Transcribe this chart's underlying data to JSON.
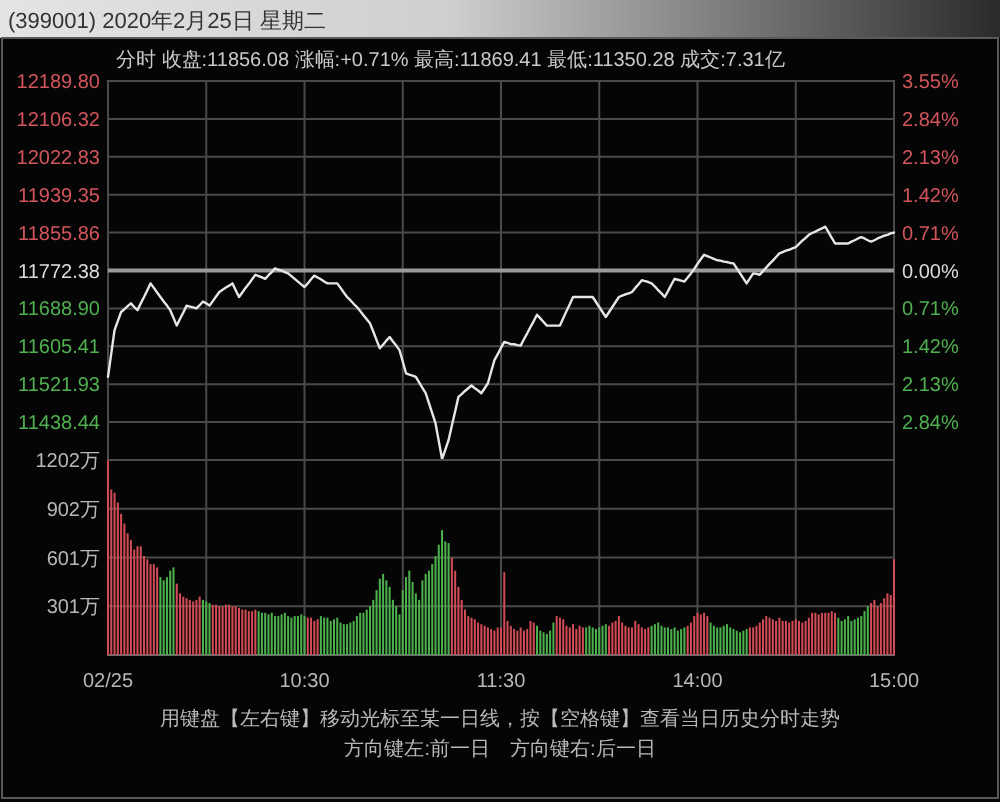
{
  "chart_data": [
    {
      "type": "line",
      "title": "(399001) 2020年2月25日 星期二",
      "subtitle": "分时  收盘:11856.08  涨幅:+0.71%  最高:11869.41  最低:11350.28  成交:7.31亿",
      "categories": [
        null,
        null,
        null,
        null,
        null,
        null,
        null,
        null,
        null,
        null,
        null,
        null,
        null,
        null,
        null,
        null,
        null,
        null,
        null,
        null,
        null,
        null,
        null,
        null,
        null,
        null,
        null,
        null,
        null,
        null,
        null,
        null,
        null,
        null,
        null,
        null,
        null,
        null,
        null,
        null,
        null,
        null,
        null,
        null,
        null,
        null,
        null,
        null,
        null,
        null,
        null,
        null,
        null,
        null,
        null,
        null,
        null,
        null,
        null,
        null,
        null,
        null,
        null,
        null,
        null,
        null,
        null,
        null,
        null,
        null,
        null,
        null,
        null,
        null,
        null,
        null,
        null,
        null,
        null,
        null,
        null,
        null,
        null,
        null,
        null,
        null,
        null,
        null,
        null,
        null,
        null,
        null,
        null,
        null,
        null,
        null,
        null,
        null,
        null,
        null,
        null,
        null,
        null,
        null,
        null,
        null,
        null,
        null,
        null,
        null,
        null,
        null,
        null,
        null,
        null,
        null,
        null,
        null,
        null,
        null,
        null,
        null,
        null,
        null,
        null,
        null,
        null,
        null,
        null,
        null,
        null,
        null,
        null,
        null,
        null,
        null,
        null,
        null,
        null,
        null,
        null,
        null,
        null,
        null,
        null,
        null,
        null,
        null,
        null,
        null,
        null,
        null,
        null,
        null,
        null,
        null,
        null,
        null,
        null,
        null,
        null,
        null,
        null,
        null,
        null,
        null,
        null,
        null,
        null,
        null,
        null,
        null,
        null,
        null,
        null,
        null,
        null,
        null,
        null,
        null,
        null,
        null,
        null,
        null,
        null,
        null,
        null,
        null,
        null,
        null,
        null,
        null,
        null,
        null,
        null,
        null,
        null,
        null,
        null,
        null,
        null,
        null,
        null,
        null,
        null,
        null,
        null,
        null,
        null,
        null,
        null,
        null,
        null,
        null,
        null,
        null,
        null,
        null,
        null,
        null,
        null,
        null,
        null,
        null,
        null,
        null,
        null,
        null,
        null,
        null,
        null,
        null,
        null,
        null,
        null,
        null,
        null,
        null,
        null,
        null,
        null
      ],
      "series": [
        {
          "color": "#e6e6e6",
          "values": [
            11538,
            11590,
            11641,
            11661,
            11681,
            11687,
            11694,
            11700,
            11692,
            11685,
            11700,
            11714,
            11729,
            11744,
            11734,
            11724,
            11714,
            11704,
            11695,
            11685,
            11668,
            11651,
            11666,
            11680,
            11695,
            11693,
            11691,
            11689,
            11696,
            11704,
            11700,
            11695,
            11705,
            11715,
            11725,
            11730,
            11735,
            11739,
            11744,
            11729,
            11714,
            11724,
            11734,
            11743,
            11753,
            11763,
            11760,
            11757,
            11754,
            11762,
            11769,
            11777,
            11774,
            11772,
            11769,
            11766,
            11760,
            11754,
            11748,
            11742,
            11736,
            11744,
            11753,
            11761,
            11757,
            11753,
            11748,
            11744,
            11744,
            11744,
            11744,
            11734,
            11724,
            11714,
            11707,
            11699,
            11692,
            11683,
            11674,
            11665,
            11656,
            11638,
            11619,
            11601,
            11609,
            11618,
            11626,
            11616,
            11607,
            11597,
            11572,
            11546,
            11543,
            11541,
            11538,
            11526,
            11514,
            11502,
            11480,
            11458,
            11436,
            11397,
            11357,
            11378,
            11399,
            11431,
            11462,
            11494,
            11500,
            11507,
            11513,
            11519,
            11513,
            11508,
            11502,
            11513,
            11524,
            11550,
            11575,
            11588,
            11602,
            11615,
            11613,
            11610,
            11610,
            11608,
            11607,
            11621,
            11634,
            11648,
            11661,
            11675,
            11667,
            11659,
            11651,
            11651,
            11651,
            11651,
            11651,
            11667,
            11683,
            11698,
            11714,
            11714,
            11714,
            11714,
            11714,
            11714,
            11714,
            11703,
            11692,
            11681,
            11670,
            11681,
            11692,
            11703,
            11714,
            11717,
            11720,
            11722,
            11725,
            11734,
            11742,
            11751,
            11749,
            11747,
            11744,
            11737,
            11729,
            11722,
            11714,
            11727,
            11741,
            11754,
            11752,
            11750,
            11748,
            11757,
            11766,
            11776,
            11787,
            11797,
            11807,
            11804,
            11801,
            11798,
            11795,
            11794,
            11792,
            11791,
            11789,
            11788,
            11777,
            11766,
            11755,
            11744,
            11755,
            11766,
            11765,
            11763,
            11771,
            11779,
            11787,
            11794,
            11802,
            11810,
            11813,
            11816,
            11818,
            11821,
            11824,
            11831,
            11838,
            11844,
            11851,
            11855,
            11858,
            11862,
            11865,
            11869,
            11857,
            11844,
            11832,
            11832,
            11832,
            11832,
            11832,
            11836,
            11839,
            11843,
            11846,
            11843,
            11839,
            11836,
            11839,
            11843,
            11846,
            11849,
            11851,
            11854,
            11856
          ]
        }
      ],
      "tick_labels": "y",
      "ylim": [
        11354.96,
        12189.8
      ],
      "yticks": [
        {
          "value": 12189.8,
          "label": "12189.80"
        },
        {
          "value": 12106.32,
          "label": "12106.32"
        },
        {
          "value": 12022.83,
          "label": "12022.83"
        },
        {
          "value": 11939.35,
          "label": "11939.35"
        },
        {
          "value": 11855.86,
          "label": "11855.86"
        },
        {
          "value": 11772.38,
          "label": "11772.38"
        },
        {
          "value": 11688.9,
          "label": "11688.90"
        },
        {
          "value": 11605.41,
          "label": "11605.41"
        },
        {
          "value": 11521.93,
          "label": "11521.93"
        },
        {
          "value": 11438.44,
          "label": "11438.44"
        }
      ],
      "y2lim": [
        -3.55,
        3.55
      ],
      "y2ticks": [
        {
          "value": 3.55,
          "label": "3.55%"
        },
        {
          "value": 2.84,
          "label": "2.84%"
        },
        {
          "value": 2.13,
          "label": "2.13%"
        },
        {
          "value": 1.42,
          "label": "1.42%"
        },
        {
          "value": 0.71,
          "label": "0.71%"
        },
        {
          "value": 0,
          "label": "0.00%"
        },
        {
          "value": -0.71,
          "label": "0.71%"
        },
        {
          "value": -1.42,
          "label": "1.42%"
        },
        {
          "value": -2.13,
          "label": "2.13%"
        },
        {
          "value": -2.84,
          "label": "2.84%"
        }
      ],
      "ref_lines": [
        {
          "axis": "y",
          "value": 11772.38,
          "color": "#9a9a9a"
        }
      ],
      "grid": true
    },
    {
      "type": "bar",
      "annotations": [
        "用键盘【左右键】移动光标至某一日线，按【空格键】查看当日历史分时走势",
        "方向键左:前一日　方向键右:后一日"
      ],
      "categories": [
        "02/25",
        null,
        null,
        null,
        null,
        null,
        null,
        null,
        null,
        null,
        null,
        null,
        null,
        null,
        null,
        null,
        null,
        null,
        null,
        null,
        null,
        null,
        null,
        null,
        null,
        null,
        null,
        null,
        null,
        null,
        null,
        null,
        null,
        null,
        null,
        null,
        null,
        null,
        null,
        null,
        null,
        null,
        null,
        null,
        null,
        null,
        null,
        null,
        null,
        null,
        null,
        null,
        null,
        null,
        null,
        null,
        null,
        null,
        null,
        null,
        "10:30",
        null,
        null,
        null,
        null,
        null,
        null,
        null,
        null,
        null,
        null,
        null,
        null,
        null,
        null,
        null,
        null,
        null,
        null,
        null,
        null,
        null,
        null,
        null,
        null,
        null,
        null,
        null,
        null,
        null,
        null,
        null,
        null,
        null,
        null,
        null,
        null,
        null,
        null,
        null,
        null,
        null,
        null,
        null,
        null,
        null,
        null,
        null,
        null,
        null,
        null,
        null,
        null,
        null,
        null,
        null,
        null,
        null,
        null,
        null,
        "11:30",
        null,
        null,
        null,
        null,
        null,
        null,
        null,
        null,
        null,
        null,
        null,
        null,
        null,
        null,
        null,
        null,
        null,
        null,
        null,
        null,
        null,
        null,
        null,
        null,
        null,
        null,
        null,
        null,
        null,
        null,
        null,
        null,
        null,
        null,
        null,
        null,
        null,
        null,
        null,
        null,
        null,
        null,
        null,
        null,
        null,
        null,
        null,
        null,
        null,
        null,
        null,
        null,
        null,
        null,
        null,
        null,
        null,
        null,
        null,
        "14:00",
        null,
        null,
        null,
        null,
        null,
        null,
        null,
        null,
        null,
        null,
        null,
        null,
        null,
        null,
        null,
        null,
        null,
        null,
        null,
        null,
        null,
        null,
        null,
        null,
        null,
        null,
        null,
        null,
        null,
        null,
        null,
        null,
        null,
        null,
        null,
        null,
        null,
        null,
        null,
        null,
        null,
        null,
        null,
        null,
        null,
        null,
        null,
        null,
        null,
        null,
        null,
        null,
        null,
        null,
        null,
        null,
        null,
        null,
        null,
        "15:00"
      ],
      "values": [
        1200,
        1020,
        1000,
        940,
        870,
        810,
        750,
        710,
        650,
        670,
        670,
        610,
        590,
        560,
        560,
        540,
        480,
        460,
        480,
        520,
        540,
        440,
        380,
        360,
        350,
        340,
        330,
        340,
        360,
        340,
        330,
        320,
        310,
        310,
        300,
        300,
        310,
        310,
        300,
        300,
        290,
        280,
        280,
        270,
        270,
        280,
        270,
        260,
        260,
        250,
        260,
        240,
        240,
        250,
        260,
        240,
        230,
        240,
        240,
        250,
        240,
        230,
        230,
        210,
        220,
        240,
        230,
        230,
        210,
        220,
        230,
        200,
        190,
        190,
        200,
        210,
        240,
        260,
        260,
        280,
        300,
        340,
        400,
        470,
        500,
        460,
        420,
        340,
        300,
        250,
        400,
        480,
        520,
        450,
        380,
        340,
        460,
        500,
        520,
        560,
        610,
        680,
        770,
        700,
        690,
        600,
        520,
        420,
        340,
        280,
        240,
        230,
        220,
        200,
        190,
        180,
        170,
        160,
        150,
        170,
        170,
        510,
        210,
        180,
        160,
        150,
        170,
        150,
        160,
        210,
        200,
        180,
        150,
        140,
        130,
        150,
        200,
        240,
        230,
        220,
        180,
        170,
        190,
        160,
        180,
        170,
        170,
        180,
        170,
        160,
        170,
        180,
        190,
        180,
        200,
        210,
        240,
        200,
        180,
        170,
        170,
        210,
        190,
        170,
        160,
        170,
        180,
        190,
        200,
        180,
        170,
        170,
        160,
        170,
        150,
        160,
        170,
        180,
        200,
        240,
        260,
        250,
        260,
        240,
        200,
        180,
        170,
        170,
        180,
        190,
        170,
        160,
        150,
        140,
        150,
        160,
        170,
        170,
        180,
        200,
        220,
        240,
        230,
        220,
        210,
        230,
        210,
        210,
        200,
        210,
        220,
        210,
        200,
        210,
        230,
        260,
        260,
        250,
        260,
        260,
        260,
        270,
        260,
        230,
        210,
        220,
        240,
        210,
        220,
        230,
        240,
        270,
        300,
        320,
        340,
        300,
        320,
        350,
        380,
        370,
        590
      ],
      "colors": [
        "#d24b55",
        "#d24b55",
        "#d24b55",
        "#d24b55",
        "#d24b55",
        "#d24b55",
        "#d24b55",
        "#d24b55",
        "#d24b55",
        "#d24b55",
        "#d24b55",
        "#d24b55",
        "#d24b55",
        "#d24b55",
        "#d24b55",
        "#d24b55",
        "#4cb04c",
        "#4cb04c",
        "#4cb04c",
        "#4cb04c",
        "#4cb04c",
        "#d24b55",
        "#d24b55",
        "#d24b55",
        "#d24b55",
        "#d24b55",
        "#d24b55",
        "#d24b55",
        "#d24b55",
        "#4cb04c",
        "#4cb04c",
        "#4cb04c",
        "#d24b55",
        "#d24b55",
        "#d24b55",
        "#d24b55",
        "#d24b55",
        "#d24b55",
        "#d24b55",
        "#d24b55",
        "#d24b55",
        "#d24b55",
        "#d24b55",
        "#d24b55",
        "#d24b55",
        "#d24b55",
        "#4cb04c",
        "#4cb04c",
        "#4cb04c",
        "#4cb04c",
        "#4cb04c",
        "#4cb04c",
        "#4cb04c",
        "#4cb04c",
        "#4cb04c",
        "#4cb04c",
        "#4cb04c",
        "#4cb04c",
        "#4cb04c",
        "#4cb04c",
        "#4cb04c",
        "#d24b55",
        "#d24b55",
        "#d24b55",
        "#d24b55",
        "#4cb04c",
        "#4cb04c",
        "#4cb04c",
        "#4cb04c",
        "#4cb04c",
        "#4cb04c",
        "#4cb04c",
        "#4cb04c",
        "#4cb04c",
        "#4cb04c",
        "#4cb04c",
        "#4cb04c",
        "#4cb04c",
        "#4cb04c",
        "#4cb04c",
        "#4cb04c",
        "#4cb04c",
        "#4cb04c",
        "#4cb04c",
        "#4cb04c",
        "#4cb04c",
        "#4cb04c",
        "#4cb04c",
        "#4cb04c",
        "#4cb04c",
        "#4cb04c",
        "#4cb04c",
        "#4cb04c",
        "#4cb04c",
        "#4cb04c",
        "#4cb04c",
        "#4cb04c",
        "#4cb04c",
        "#4cb04c",
        "#4cb04c",
        "#4cb04c",
        "#4cb04c",
        "#4cb04c",
        "#4cb04c",
        "#4cb04c",
        "#d24b55",
        "#d24b55",
        "#d24b55",
        "#d24b55",
        "#d24b55",
        "#d24b55",
        "#d24b55",
        "#d24b55",
        "#d24b55",
        "#d24b55",
        "#d24b55",
        "#d24b55",
        "#d24b55",
        "#d24b55",
        "#d24b55",
        "#d24b55",
        "#d24b55",
        "#d24b55",
        "#d24b55",
        "#d24b55",
        "#d24b55",
        "#d24b55",
        "#d24b55",
        "#d24b55",
        "#d24b55",
        "#d24b55",
        "#4cb04c",
        "#4cb04c",
        "#4cb04c",
        "#4cb04c",
        "#4cb04c",
        "#4cb04c",
        "#d24b55",
        "#d24b55",
        "#d24b55",
        "#d24b55",
        "#d24b55",
        "#d24b55",
        "#d24b55",
        "#d24b55",
        "#d24b55",
        "#4cb04c",
        "#4cb04c",
        "#4cb04c",
        "#4cb04c",
        "#4cb04c",
        "#4cb04c",
        "#4cb04c",
        "#d24b55",
        "#d24b55",
        "#d24b55",
        "#d24b55",
        "#d24b55",
        "#d24b55",
        "#d24b55",
        "#d24b55",
        "#d24b55",
        "#d24b55",
        "#d24b55",
        "#d24b55",
        "#d24b55",
        "#4cb04c",
        "#4cb04c",
        "#4cb04c",
        "#4cb04c",
        "#4cb04c",
        "#4cb04c",
        "#4cb04c",
        "#4cb04c",
        "#4cb04c",
        "#4cb04c",
        "#4cb04c",
        "#d24b55",
        "#d24b55",
        "#d24b55",
        "#d24b55",
        "#d24b55",
        "#d24b55",
        "#d24b55",
        "#4cb04c",
        "#4cb04c",
        "#4cb04c",
        "#4cb04c",
        "#4cb04c",
        "#4cb04c",
        "#4cb04c",
        "#4cb04c",
        "#4cb04c",
        "#4cb04c",
        "#4cb04c",
        "#4cb04c",
        "#d24b55",
        "#d24b55",
        "#d24b55",
        "#d24b55",
        "#d24b55",
        "#d24b55",
        "#d24b55",
        "#d24b55",
        "#d24b55",
        "#d24b55",
        "#d24b55",
        "#d24b55",
        "#d24b55",
        "#d24b55",
        "#d24b55",
        "#d24b55",
        "#d24b55",
        "#d24b55",
        "#d24b55",
        "#d24b55",
        "#d24b55",
        "#d24b55",
        "#d24b55",
        "#d24b55",
        "#d24b55",
        "#d24b55",
        "#d24b55",
        "#4cb04c",
        "#4cb04c",
        "#4cb04c",
        "#4cb04c",
        "#4cb04c",
        "#4cb04c",
        "#4cb04c",
        "#4cb04c",
        "#4cb04c",
        "#4cb04c",
        "#d24b55",
        "#d24b55",
        "#d24b55",
        "#d24b55",
        "#d24b55",
        "#d24b55",
        "#d24b55",
        "#d24b55"
      ],
      "ylim": [
        0,
        1202
      ],
      "yticks": [
        {
          "value": 1202,
          "label": "1202万"
        },
        {
          "value": 902,
          "label": "902万"
        },
        {
          "value": 601,
          "label": "601万"
        },
        {
          "value": 301,
          "label": "301万"
        }
      ],
      "grid": true
    }
  ]
}
